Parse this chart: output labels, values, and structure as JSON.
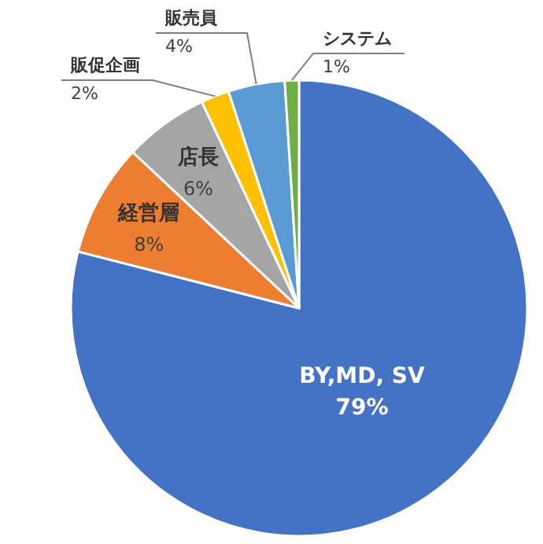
{
  "chart_data": {
    "type": "pie",
    "categories": [
      "BY,MD, SV",
      "経営層",
      "店長",
      "販促企画",
      "販売員",
      "システム"
    ],
    "values": [
      79,
      8,
      6,
      2,
      4,
      1
    ],
    "value_labels": [
      "79%",
      "8%",
      "6%",
      "2%",
      "4%",
      "1%"
    ],
    "colors": [
      "#4472c4",
      "#ed7d31",
      "#a5a5a5",
      "#ffc000",
      "#5b9bd5",
      "#70ad47"
    ]
  }
}
